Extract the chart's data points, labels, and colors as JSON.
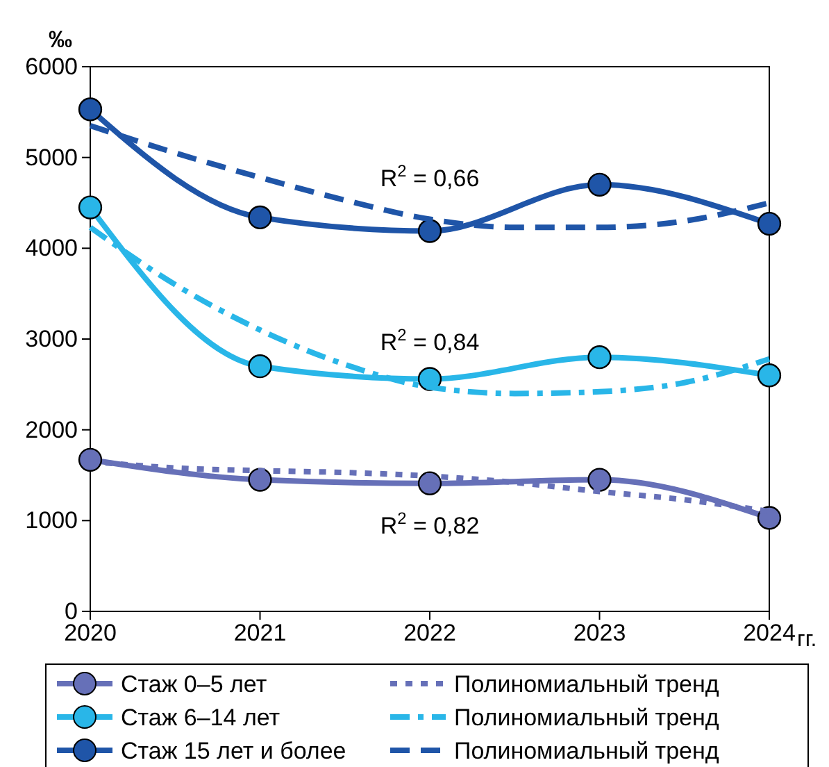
{
  "chart_data": {
    "type": "line",
    "ylabel": "‰",
    "xlabel": "гг.",
    "x": [
      2020,
      2021,
      2022,
      2023,
      2024
    ],
    "xlim": [
      2020,
      2024
    ],
    "xticks": [
      2020,
      2021,
      2022,
      2023,
      2024
    ],
    "ylim": [
      0,
      6000
    ],
    "yticks": [
      0,
      1000,
      2000,
      3000,
      4000,
      5000,
      6000
    ],
    "grid": false,
    "legend": "bottom",
    "marker": "circle",
    "line_style": "solid",
    "series": [
      {
        "name": "Стаж 0–5 лет",
        "color": "#6670b8",
        "values": [
          1670,
          1450,
          1410,
          1450,
          1030
        ]
      },
      {
        "name": "Полиномиальный тренд",
        "color": "#6670b8",
        "marker": "none",
        "line_style": "dotted",
        "x": [
          2020,
          2020.5,
          2021,
          2021.5,
          2022,
          2022.5,
          2023,
          2023.5,
          2024
        ],
        "values": [
          1650,
          1580,
          1550,
          1530,
          1490,
          1420,
          1320,
          1230,
          1100
        ]
      },
      {
        "name": "Стаж 6–14 лет",
        "color": "#29b6e8",
        "values": [
          4450,
          2700,
          2560,
          2800,
          2600
        ]
      },
      {
        "name": "Полиномиальный тренд",
        "color": "#29b6e8",
        "marker": "none",
        "line_style": "dashdot",
        "x": [
          2020,
          2020.5,
          2021,
          2021.5,
          2022,
          2022.5,
          2023,
          2023.5,
          2024
        ],
        "values": [
          4230,
          3600,
          3100,
          2720,
          2470,
          2400,
          2420,
          2520,
          2780
        ]
      },
      {
        "name": "Стаж 15 лет и более",
        "color": "#1f55a8",
        "values": [
          5530,
          4340,
          4190,
          4700,
          4270
        ]
      },
      {
        "name": "Полиномиальный тренд",
        "color": "#1f55a8",
        "marker": "none",
        "line_style": "dashed",
        "x": [
          2020,
          2020.5,
          2021,
          2021.5,
          2022,
          2022.5,
          2023,
          2023.5,
          2024
        ],
        "values": [
          5350,
          5050,
          4780,
          4530,
          4320,
          4230,
          4230,
          4300,
          4500
        ]
      }
    ],
    "annotations": [
      "R$^{2}$ = 0,66",
      "R$^{2}$ = 0,84",
      "R$^{2}$ = 0,82"
    ]
  }
}
